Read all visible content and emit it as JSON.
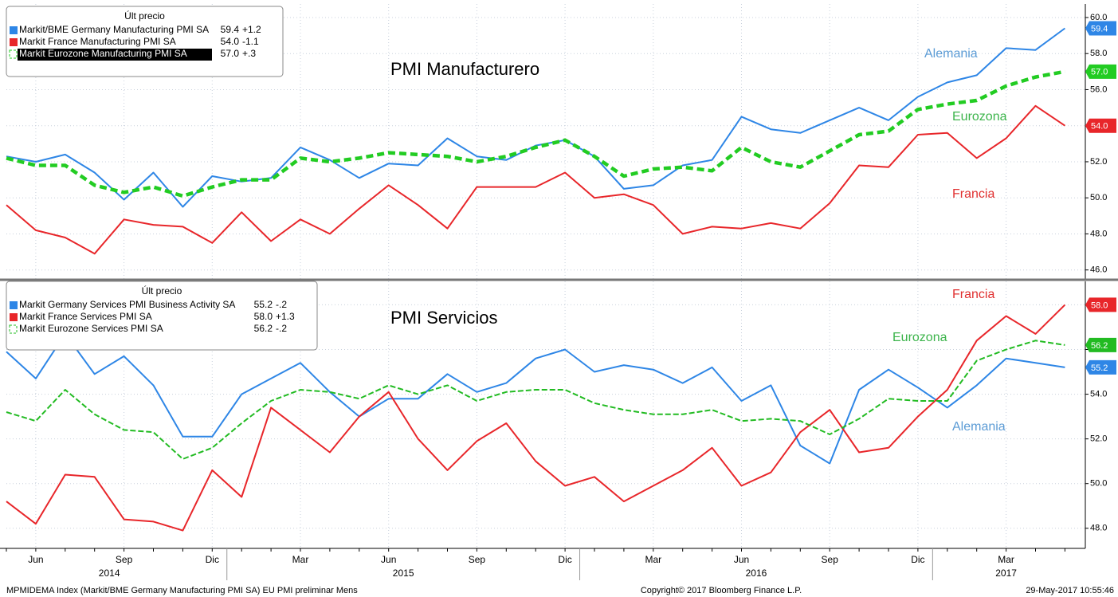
{
  "chart_data": [
    {
      "type": "line",
      "title": "PMI Manufacturero",
      "legend_title": "Últ precio",
      "ylim": [
        45.5,
        60.75
      ],
      "yticks": [
        {
          "value": 46,
          "label": "46.0"
        },
        {
          "value": 48,
          "label": "48.0"
        },
        {
          "value": 50,
          "label": "50.0"
        },
        {
          "value": 52,
          "label": "52.0"
        },
        {
          "value": 54,
          "label": "54.0"
        },
        {
          "value": 56,
          "label": "56.0"
        },
        {
          "value": 58,
          "label": "58.0"
        },
        {
          "value": 60,
          "label": "60.0"
        }
      ],
      "grid": true,
      "series": [
        {
          "name": "Markit/BME Germany Manufacturing PMI SA",
          "last_label": "59.4",
          "change": "+1.2",
          "label": "Alemania",
          "color": "#2e86e6",
          "label_color": "#5b9bd5",
          "dashed": false,
          "values": [
            52.3,
            52.0,
            52.4,
            51.4,
            49.9,
            51.4,
            49.5,
            51.2,
            50.9,
            51.1,
            52.8,
            52.1,
            51.1,
            51.9,
            51.8,
            53.3,
            52.3,
            52.1,
            52.9,
            53.2,
            52.3,
            50.5,
            50.7,
            51.8,
            52.1,
            54.5,
            53.8,
            53.6,
            54.3,
            55.0,
            54.3,
            55.6,
            56.4,
            56.8,
            58.3,
            58.2,
            59.4
          ]
        },
        {
          "name": "Markit France Manufacturing PMI SA",
          "last_label": "54.0",
          "change": "-1.1",
          "label": "Francia",
          "color": "#e8262a",
          "label_color": "#e03030",
          "dashed": false,
          "values": [
            49.6,
            48.2,
            47.8,
            46.9,
            48.8,
            48.5,
            48.4,
            47.5,
            49.2,
            47.6,
            48.8,
            48.0,
            49.4,
            50.7,
            49.6,
            48.3,
            50.6,
            50.6,
            50.6,
            51.4,
            50.0,
            50.2,
            49.6,
            48.0,
            48.4,
            48.3,
            48.6,
            48.3,
            49.7,
            51.8,
            51.7,
            53.5,
            53.6,
            52.2,
            53.3,
            55.1,
            54.0
          ]
        },
        {
          "name": "Markit Eurozone Manufacturing PMI SA",
          "last_label": "57.0",
          "change": "+.3",
          "label": "Eurozona",
          "color": "#22cc22",
          "label_color": "#3cb44b",
          "dashed": true,
          "values": [
            52.2,
            51.8,
            51.8,
            50.7,
            50.3,
            50.6,
            50.1,
            50.6,
            51.0,
            51.0,
            52.2,
            52.0,
            52.2,
            52.5,
            52.4,
            52.3,
            52.0,
            52.3,
            52.8,
            53.2,
            52.3,
            51.2,
            51.6,
            51.7,
            51.5,
            52.8,
            52.0,
            51.7,
            52.6,
            53.5,
            53.7,
            54.9,
            55.2,
            55.4,
            56.2,
            56.7,
            57.0
          ]
        }
      ]
    },
    {
      "type": "line",
      "title": "PMI Servicios",
      "legend_title": "Últ precio",
      "ylim": [
        47.1,
        59.05
      ],
      "yticks": [
        {
          "value": 48,
          "label": "48.0"
        },
        {
          "value": 50,
          "label": "50.0"
        },
        {
          "value": 52,
          "label": "52.0"
        },
        {
          "value": 54,
          "label": "54.0"
        },
        {
          "value": 56,
          "label": "56.0"
        },
        {
          "value": 58,
          "label": "58.0"
        }
      ],
      "grid": true,
      "categories": [
        null,
        "Jun",
        null,
        null,
        "Sep",
        null,
        null,
        "Dic",
        null,
        null,
        "Mar",
        null,
        null,
        "Jun",
        null,
        null,
        "Sep",
        null,
        null,
        "Dic",
        null,
        null,
        "Mar",
        null,
        null,
        "Jun",
        null,
        null,
        "Sep",
        null,
        null,
        "Dic",
        null,
        null,
        "Mar",
        null,
        null
      ],
      "years": [
        "2014",
        "2015",
        "2016",
        "2017"
      ],
      "series": [
        {
          "name": "Markit Germany Services PMI Business Activity SA",
          "last_label": "55.2",
          "change": "-.2",
          "label": "Alemania",
          "color": "#2e86e6",
          "label_color": "#5b9bd5",
          "dashed": false,
          "values": [
            55.9,
            54.7,
            56.7,
            54.9,
            55.7,
            54.4,
            52.1,
            52.1,
            54.0,
            54.7,
            55.4,
            54.1,
            53.0,
            53.8,
            53.8,
            54.9,
            54.1,
            54.5,
            55.6,
            56.0,
            55.0,
            55.3,
            55.1,
            54.5,
            55.2,
            53.7,
            54.4,
            51.7,
            50.9,
            54.2,
            55.1,
            54.3,
            53.4,
            54.4,
            55.6,
            55.4,
            55.2
          ]
        },
        {
          "name": "Markit France Services PMI SA",
          "last_label": "58.0",
          "change": "+1.3",
          "label": "Francia",
          "color": "#e8262a",
          "label_color": "#e03030",
          "dashed": false,
          "values": [
            49.2,
            48.2,
            50.4,
            50.3,
            48.4,
            48.3,
            47.9,
            50.6,
            49.4,
            53.4,
            52.4,
            51.4,
            53.0,
            54.1,
            52.0,
            50.6,
            51.9,
            52.7,
            51.0,
            49.9,
            50.3,
            49.2,
            49.9,
            50.6,
            51.6,
            49.9,
            50.5,
            52.3,
            53.3,
            51.4,
            51.6,
            53.0,
            54.2,
            56.4,
            57.5,
            56.7,
            58.0
          ]
        },
        {
          "name": "Markit Eurozone Services PMI SA",
          "last_label": "56.2",
          "change": "-.2",
          "label": "Eurozona",
          "color": "#22bb22",
          "label_color": "#3cb44b",
          "dashed": true,
          "values": [
            53.2,
            52.8,
            54.2,
            53.1,
            52.4,
            52.3,
            51.1,
            51.6,
            52.7,
            53.7,
            54.2,
            54.1,
            53.8,
            54.4,
            54.0,
            54.4,
            53.7,
            54.1,
            54.2,
            54.2,
            53.6,
            53.3,
            53.1,
            53.1,
            53.3,
            52.8,
            52.9,
            52.8,
            52.2,
            52.9,
            53.8,
            53.7,
            53.7,
            55.5,
            56.0,
            56.4,
            56.2
          ]
        }
      ]
    }
  ],
  "footer": {
    "left": "MPMIDEMA Index (Markit/BME Germany Manufacturing PMI SA) EU PMI preliminar  Mens",
    "center": "Copyright© 2017 Bloomberg Finance L.P.",
    "right": "29-May-2017 10:55:46"
  }
}
